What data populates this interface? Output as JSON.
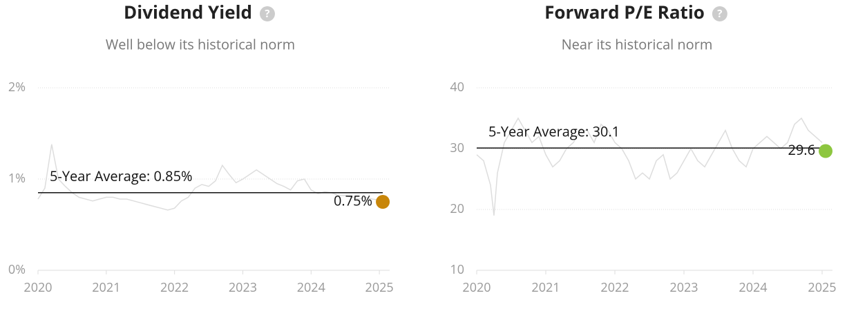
{
  "chart_data": [
    {
      "type": "line",
      "title": "Dividend Yield",
      "subtitle": "Well below its historical norm",
      "x": [
        2020.0,
        2020.1,
        2020.2,
        2020.3,
        2020.4,
        2020.5,
        2020.6,
        2020.7,
        2020.8,
        2020.9,
        2021.0,
        2021.1,
        2021.2,
        2021.3,
        2021.4,
        2021.5,
        2021.6,
        2021.7,
        2021.8,
        2021.9,
        2022.0,
        2022.1,
        2022.2,
        2022.3,
        2022.4,
        2022.5,
        2022.6,
        2022.7,
        2022.8,
        2022.9,
        2023.0,
        2023.1,
        2023.2,
        2023.3,
        2023.4,
        2023.5,
        2023.6,
        2023.7,
        2023.8,
        2023.9,
        2024.0,
        2024.1,
        2024.2,
        2024.3,
        2024.4,
        2024.5,
        2024.6,
        2024.7,
        2024.8,
        2024.9,
        2025.0
      ],
      "values": [
        0.78,
        0.9,
        1.38,
        1.0,
        0.92,
        0.85,
        0.8,
        0.78,
        0.76,
        0.78,
        0.8,
        0.8,
        0.78,
        0.78,
        0.76,
        0.74,
        0.72,
        0.7,
        0.68,
        0.66,
        0.68,
        0.76,
        0.8,
        0.9,
        0.94,
        0.92,
        0.98,
        1.15,
        1.05,
        0.96,
        1.0,
        1.05,
        1.1,
        1.05,
        1.0,
        0.95,
        0.92,
        0.88,
        0.98,
        1.0,
        0.88,
        0.84,
        0.86,
        0.85,
        0.82,
        0.82,
        0.8,
        0.78,
        0.8,
        0.78,
        0.77
      ],
      "color": "#dddddd",
      "xlim": [
        2020,
        2025.1
      ],
      "xticks": [
        2020,
        2021,
        2022,
        2023,
        2024,
        2025
      ],
      "ylim": [
        0,
        2
      ],
      "yticks": [
        {
          "value": 0,
          "label": "0%"
        },
        {
          "value": 1,
          "label": "1%"
        },
        {
          "value": 2,
          "label": "2%"
        }
      ],
      "grid": true,
      "average": 0.85,
      "average_label": "5-Year Average: 0.85%",
      "current": {
        "x": 2025.05,
        "value": 0.75,
        "label": "0.75%",
        "color": "#c8860a"
      }
    },
    {
      "type": "line",
      "title": "Forward P/E Ratio",
      "subtitle": "Near its historical norm",
      "x": [
        2020.0,
        2020.1,
        2020.2,
        2020.25,
        2020.3,
        2020.4,
        2020.5,
        2020.6,
        2020.7,
        2020.8,
        2020.9,
        2021.0,
        2021.1,
        2021.2,
        2021.3,
        2021.4,
        2021.5,
        2021.6,
        2021.7,
        2021.8,
        2021.9,
        2022.0,
        2022.1,
        2022.2,
        2022.3,
        2022.4,
        2022.5,
        2022.6,
        2022.7,
        2022.8,
        2022.9,
        2023.0,
        2023.1,
        2023.2,
        2023.3,
        2023.4,
        2023.5,
        2023.6,
        2023.7,
        2023.8,
        2023.9,
        2024.0,
        2024.1,
        2024.2,
        2024.3,
        2024.4,
        2024.5,
        2024.6,
        2024.7,
        2024.8,
        2024.9,
        2025.0
      ],
      "values": [
        29,
        28,
        24,
        19,
        26,
        31,
        33,
        35,
        33,
        31,
        32,
        29,
        27,
        28,
        30,
        31,
        33,
        33,
        31,
        34,
        33,
        31,
        30,
        28,
        25,
        26,
        25,
        28,
        29,
        25,
        26,
        28,
        30,
        28,
        27,
        29,
        31,
        33,
        30,
        28,
        27,
        30,
        31,
        32,
        31,
        30,
        31,
        34,
        35,
        33,
        32,
        31
      ],
      "color": "#dddddd",
      "xlim": [
        2020,
        2025.1
      ],
      "xticks": [
        2020,
        2021,
        2022,
        2023,
        2024,
        2025
      ],
      "ylim": [
        10,
        40
      ],
      "yticks": [
        10,
        20,
        30,
        40
      ],
      "grid": true,
      "average": 30.1,
      "average_label": "5-Year Average: 30.1",
      "current": {
        "x": 2025.05,
        "value": 29.6,
        "label": "29.6",
        "color": "#8dc63f"
      }
    }
  ]
}
